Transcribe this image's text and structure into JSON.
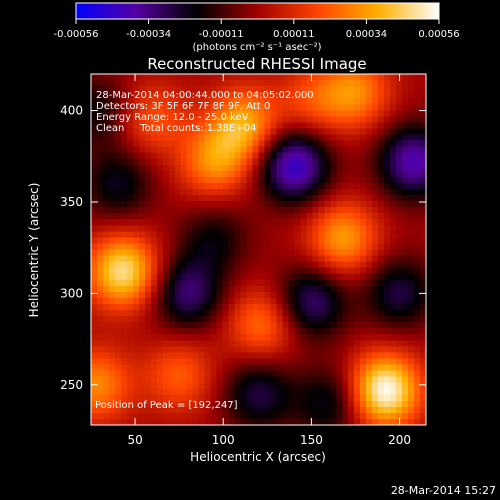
{
  "chart_data": {
    "type": "heatmap",
    "title": "Reconstructed RHESSI Image",
    "xlabel": "Heliocentric X (arcsec)",
    "ylabel": "Heliocentric Y (arcsec)",
    "xlim": [
      25,
      215
    ],
    "ylim": [
      228,
      420
    ],
    "xticks": [
      50,
      100,
      150,
      200
    ],
    "yticks": [
      250,
      300,
      350,
      400
    ],
    "colorbar": {
      "min": -0.00056,
      "max": 0.00056,
      "ticks": [
        "-0.00056",
        "-0.00034",
        "-0.00011",
        "0.00011",
        "0.00034",
        "0.00056"
      ],
      "unit_label": "(photons cm⁻² s⁻¹ asec⁻²)",
      "colors": [
        "#0000ff",
        "#5500a0",
        "#000000",
        "#a00000",
        "#ff4400",
        "#ffb000",
        "#ffffff"
      ]
    },
    "annotations": [
      "28-Mar-2014 04:00:44.000 to 04:05:02.000",
      "Detectors: 3F 5F 6F 7F 8F 9F, Att 0",
      "Energy Range: 12.0 - 25.0 keV",
      "Clean     Total counts: 1.38E+04"
    ],
    "peak_label": "Position of Peak = [192,247]",
    "peak": [
      192,
      247
    ],
    "blobs": [
      {
        "x": 192,
        "y": 247,
        "value": 0.00056
      },
      {
        "x": 43,
        "y": 312,
        "value": 0.00048
      },
      {
        "x": 28,
        "y": 250,
        "value": 0.0003
      },
      {
        "x": 95,
        "y": 372,
        "value": 0.0003
      },
      {
        "x": 112,
        "y": 392,
        "value": 0.00036
      },
      {
        "x": 168,
        "y": 330,
        "value": 0.00034
      },
      {
        "x": 175,
        "y": 410,
        "value": 0.0003
      },
      {
        "x": 122,
        "y": 283,
        "value": 0.00026
      },
      {
        "x": 75,
        "y": 255,
        "value": 0.00022
      },
      {
        "x": 150,
        "y": 405,
        "value": 0.00018
      },
      {
        "x": 60,
        "y": 395,
        "value": 0.0002
      },
      {
        "x": 140,
        "y": 370,
        "value": -0.00046
      },
      {
        "x": 208,
        "y": 372,
        "value": -0.0004
      },
      {
        "x": 80,
        "y": 300,
        "value": -0.00032
      },
      {
        "x": 150,
        "y": 295,
        "value": -0.00032
      },
      {
        "x": 120,
        "y": 245,
        "value": -0.00026
      },
      {
        "x": 160,
        "y": 240,
        "value": -0.00022
      },
      {
        "x": 40,
        "y": 360,
        "value": -0.00022
      },
      {
        "x": 95,
        "y": 330,
        "value": -0.00018
      },
      {
        "x": 200,
        "y": 300,
        "value": -0.00026
      },
      {
        "x": 28,
        "y": 400,
        "value": -0.00018
      }
    ],
    "grid": false,
    "legend": "none"
  },
  "footer": {
    "timestamp": "28-Mar-2014 15:27"
  }
}
